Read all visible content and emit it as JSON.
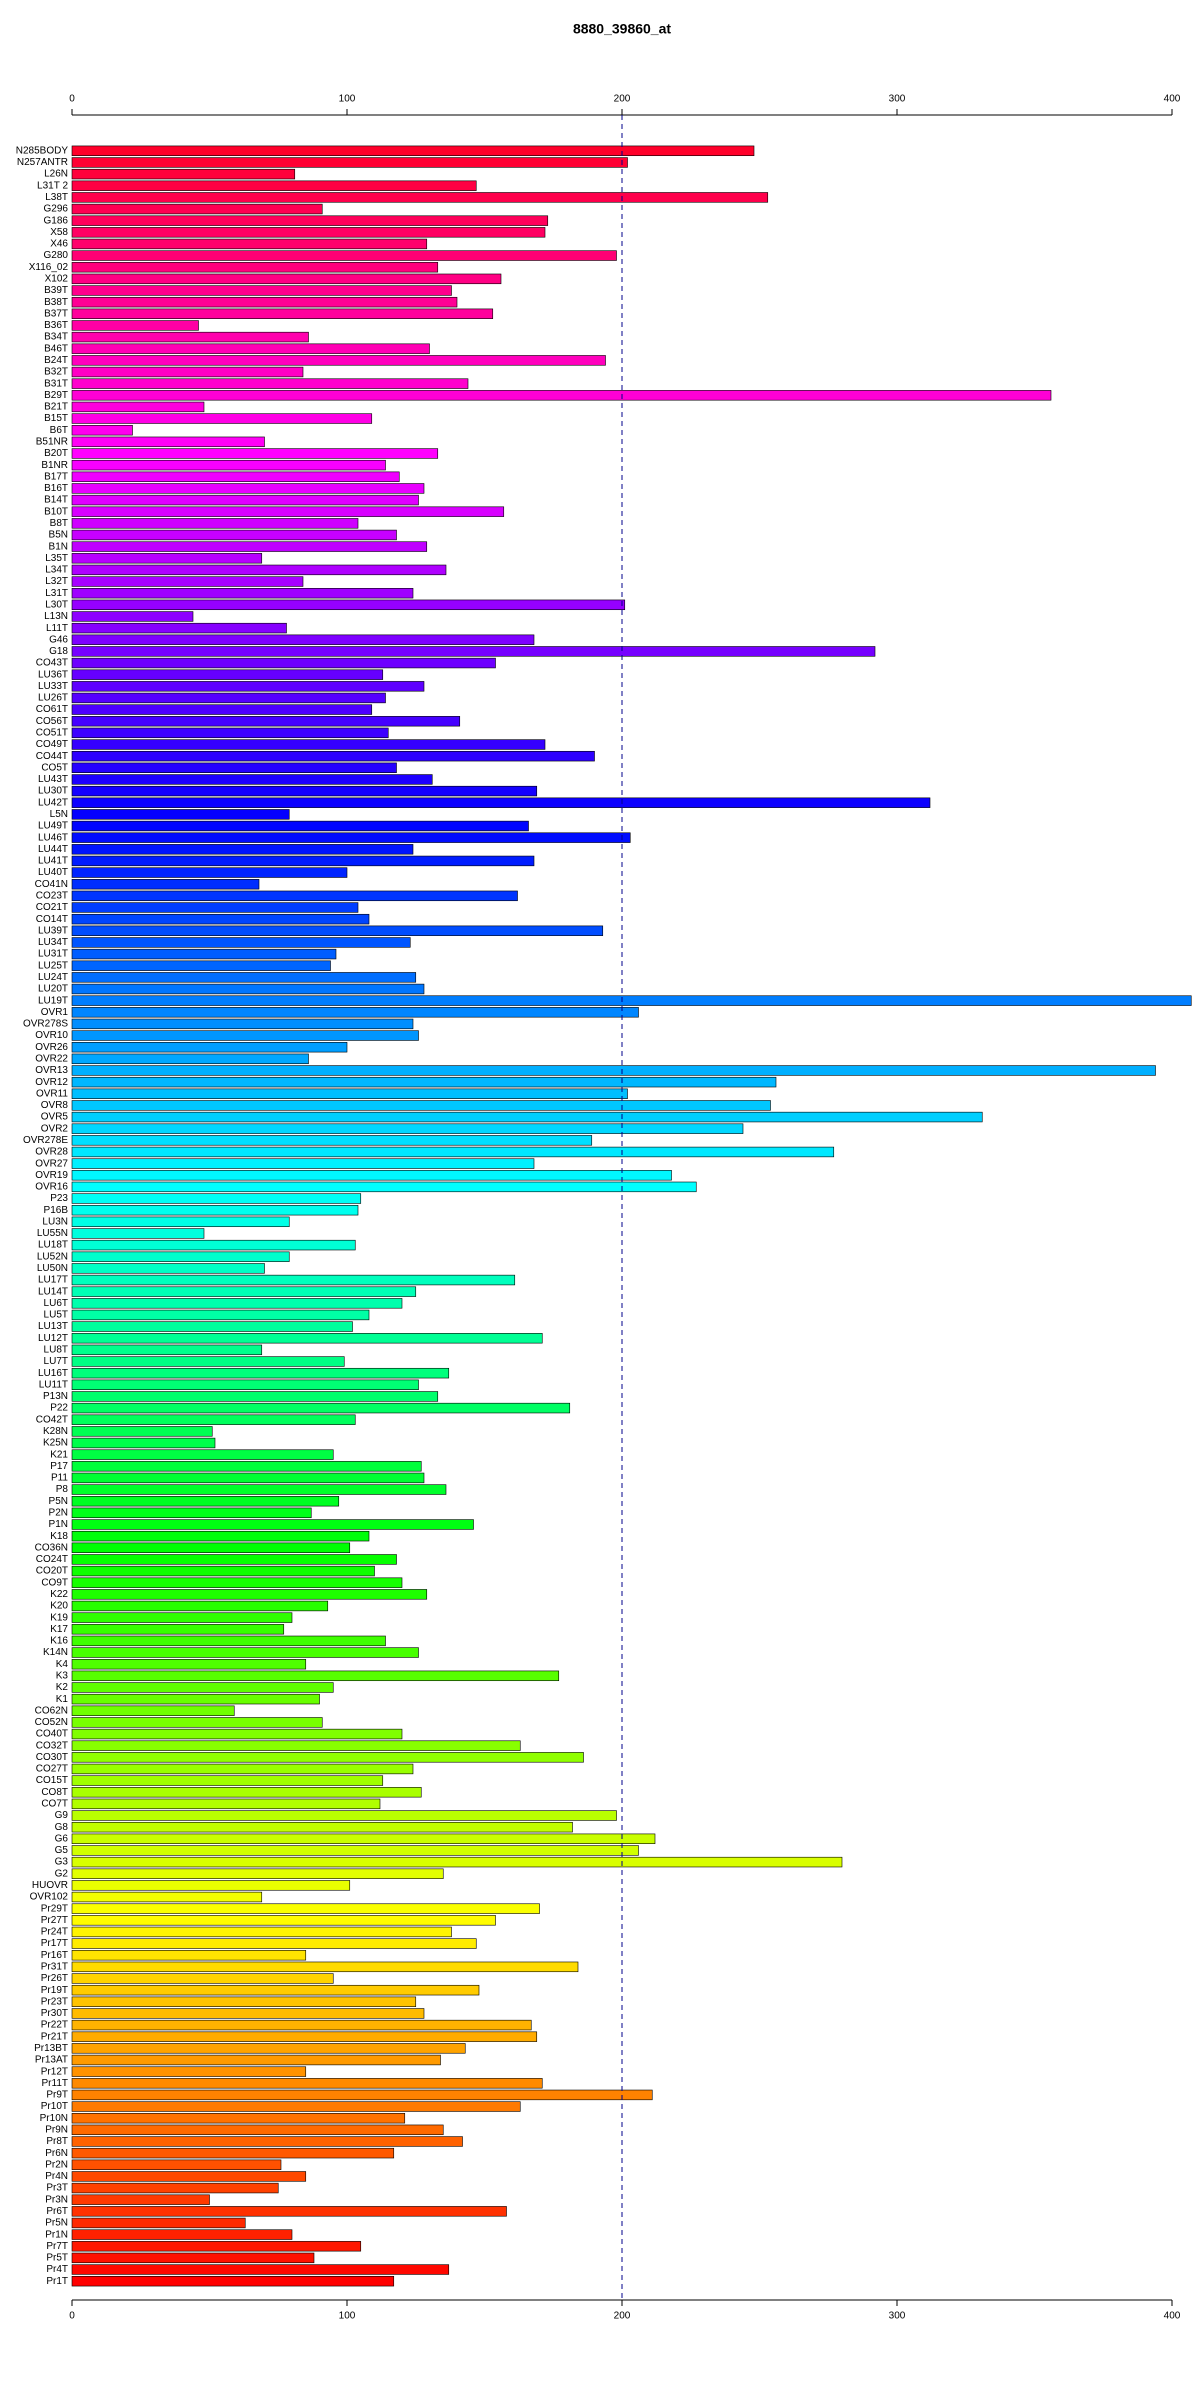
{
  "chart_data": {
    "type": "barh",
    "title": "8880_39860_at",
    "categories": [
      "N285BODY",
      "N257ANTR",
      "L26N",
      "L31T 2",
      "L38T",
      "G296",
      "G186",
      "X58",
      "X46",
      "G280",
      "X116_02",
      "X102",
      "B39T",
      "B38T",
      "B37T",
      "B36T",
      "B34T",
      "B46T",
      "B24T",
      "B32T",
      "B31T",
      "B29T",
      "B21T",
      "B15T",
      "B6T",
      "B51NR",
      "B20T",
      "B1NR",
      "B17T",
      "B16T",
      "B14T",
      "B10T",
      "B8T",
      "B5N",
      "B1N",
      "L35T",
      "L34T",
      "L32T",
      "L31T",
      "L30T",
      "L13N",
      "L11T",
      "G46",
      "G18",
      "CO43T",
      "LU36T",
      "LU33T",
      "LU26T",
      "CO61T",
      "CO56T",
      "CO51T",
      "CO49T",
      "CO44T",
      "CO5T",
      "LU43T",
      "LU30T",
      "LU42T",
      "L5N",
      "LU49T",
      "LU46T",
      "LU44T",
      "LU41T",
      "LU40T",
      "CO41N",
      "CO23T",
      "CO21T",
      "CO14T",
      "LU39T",
      "LU34T",
      "LU31T",
      "LU25T",
      "LU24T",
      "LU20T",
      "LU19T",
      "OVR1",
      "OVR278S",
      "OVR10",
      "OVR26",
      "OVR22",
      "OVR13",
      "OVR12",
      "OVR11",
      "OVR8",
      "OVR5",
      "OVR2",
      "OVR278E",
      "OVR28",
      "OVR27",
      "OVR19",
      "OVR16",
      "P23",
      "P16B",
      "LU3N",
      "LU55N",
      "LU18T",
      "LU52N",
      "LU50N",
      "LU17T",
      "LU14T",
      "LU6T",
      "LU5T",
      "LU13T",
      "LU12T",
      "LU8T",
      "LU7T",
      "LU16T",
      "LU11T",
      "P13N",
      "P22",
      "CO42T",
      "K28N",
      "K25N",
      "K21",
      "P17",
      "P11",
      "P8",
      "P5N",
      "P2N",
      "P1N",
      "K18",
      "CO36N",
      "CO24T",
      "CO20T",
      "CO9T",
      "K22",
      "K20",
      "K19",
      "K17",
      "K16",
      "K14N",
      "K4",
      "K3",
      "K2",
      "K1",
      "CO62N",
      "CO52N",
      "CO40T",
      "CO32T",
      "CO30T",
      "CO27T",
      "CO15T",
      "CO8T",
      "CO7T",
      "G9",
      "G8",
      "G6",
      "G5",
      "G3",
      "G2",
      "HUOVR",
      "OVR102",
      "Pr29T",
      "Pr27T",
      "Pr24T",
      "Pr17T",
      "Pr16T",
      "Pr31T",
      "Pr26T",
      "Pr19T",
      "Pr23T",
      "Pr30T",
      "Pr22T",
      "Pr21T",
      "Pr13BT",
      "Pr13AT",
      "Pr12T",
      "Pr11T",
      "Pr9T",
      "Pr10T",
      "Pr10N",
      "Pr9N",
      "Pr8T",
      "Pr6N",
      "Pr2N",
      "Pr4N",
      "Pr3T",
      "Pr3N",
      "Pr6T",
      "Pr5N",
      "Pr1N",
      "Pr7T",
      "Pr5T",
      "Pr4T",
      "Pr1T"
    ],
    "values": [
      248,
      202,
      81,
      147,
      253,
      91,
      173,
      172,
      129,
      198,
      133,
      156,
      138,
      140,
      153,
      46,
      86,
      130,
      194,
      84,
      144,
      356,
      48,
      109,
      22,
      70,
      133,
      114,
      119,
      128,
      126,
      157,
      104,
      118,
      129,
      69,
      136,
      84,
      124,
      201,
      44,
      78,
      168,
      292,
      154,
      113,
      128,
      114,
      109,
      141,
      115,
      172,
      190,
      118,
      131,
      169,
      312,
      79,
      166,
      203,
      124,
      168,
      100,
      68,
      162,
      104,
      108,
      193,
      123,
      96,
      94,
      125,
      128,
      407,
      206,
      124,
      126,
      100,
      86,
      394,
      256,
      202,
      254,
      331,
      244,
      189,
      277,
      168,
      218,
      227,
      105,
      104,
      79,
      48,
      103,
      79,
      70,
      161,
      125,
      120,
      108,
      102,
      171,
      69,
      99,
      137,
      126,
      133,
      181,
      103,
      51,
      52,
      95,
      127,
      128,
      136,
      97,
      87,
      146,
      108,
      101,
      118,
      110,
      120,
      129,
      93,
      80,
      77,
      114,
      126,
      85,
      177,
      95,
      90,
      59,
      91,
      120,
      163,
      186,
      124,
      113,
      127,
      112,
      198,
      182,
      212,
      206,
      280,
      135,
      101,
      69,
      170,
      154,
      138,
      147,
      85,
      184,
      95,
      148,
      125,
      128,
      167,
      169,
      143,
      134,
      85,
      171,
      211,
      163,
      121,
      135,
      142,
      117,
      76,
      85,
      75,
      50,
      158,
      63,
      80,
      105,
      88,
      137,
      117
    ],
    "palette": "rainbow",
    "xlim": [
      0,
      400
    ],
    "xticks": [
      0,
      100,
      200,
      300,
      400
    ],
    "reference_line": 200
  }
}
